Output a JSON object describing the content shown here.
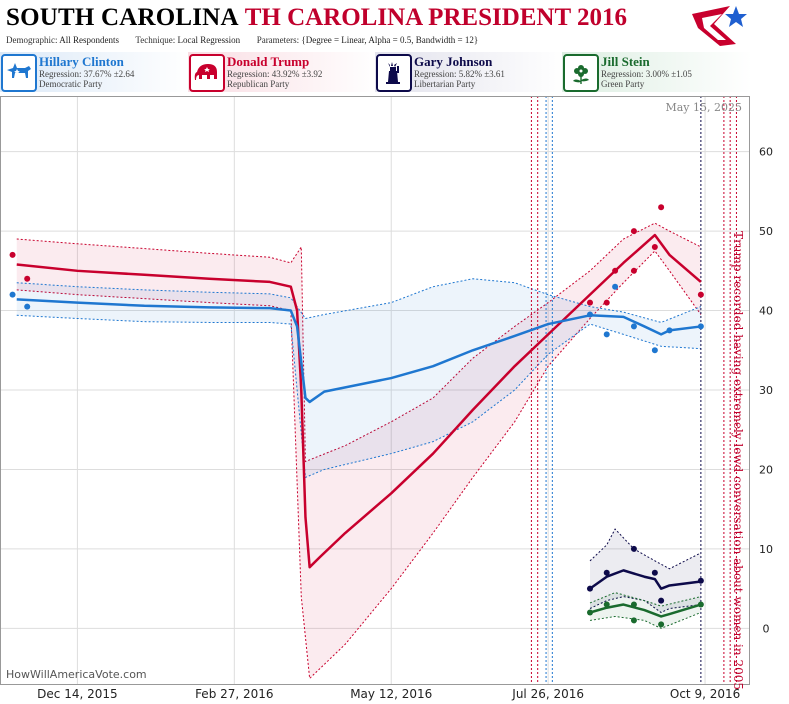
{
  "header": {
    "title_main": "SOUTH CAROLINA",
    "title_sub": "TH CAROLINA PRESIDENT 2016",
    "demographic_label": "Demographic:",
    "demographic_value": "All Respondents",
    "technique_label": "Technique:",
    "technique_value": "Local Regression",
    "parameters_label": "Parameters:",
    "parameters_value": "{Degree = Linear, Alpha = 0.5, Bandwidth = 12}"
  },
  "candidates": [
    {
      "name": "Hillary Clinton",
      "regression": "Regression: 37.67% ±2.64",
      "party": "Democratic Party",
      "color": "#1f77d0",
      "icon": "donkey-icon",
      "bg": "#e3eef9"
    },
    {
      "name": "Donald Trump",
      "regression": "Regression: 43.92% ±3.92",
      "party": "Republican Party",
      "color": "#c8002d",
      "icon": "elephant-icon",
      "bg": "#fbe6ea"
    },
    {
      "name": "Gary Johnson",
      "regression": "Regression: 5.82% ±3.61",
      "party": "Libertarian Party",
      "color": "#0d0a4a",
      "icon": "statue-of-liberty-icon",
      "bg": "#e7e7ef"
    },
    {
      "name": "Jill Stein",
      "regression": "Regression: 3.00% ±1.05",
      "party": "Green Party",
      "color": "#1a6b2e",
      "icon": "flower-icon",
      "bg": "#e4f0e7"
    }
  ],
  "watermark": "HowWillAmericaVote.com",
  "current_date": "May 15, 2025",
  "chart_data": {
    "type": "line",
    "x_axis": {
      "type": "date",
      "ticks": [
        "Dec 14, 2015",
        "Feb 27, 2016",
        "May 12, 2016",
        "Jul 26, 2016",
        "Oct 9, 2016"
      ],
      "range": [
        "2015-11-07",
        "2016-10-30"
      ]
    },
    "y_axis": {
      "ticks": [
        "0",
        "10",
        "20",
        "30",
        "40",
        "50",
        "60"
      ],
      "range": [
        -7,
        67
      ],
      "position": "right"
    },
    "grid": true,
    "vertical_markers": [
      {
        "date": "2016-07-18",
        "color": "#c8002d",
        "style": "dotted"
      },
      {
        "date": "2016-07-21",
        "color": "#c8002d",
        "style": "dotted"
      },
      {
        "date": "2016-07-25",
        "color": "#1f77d0",
        "style": "dotted"
      },
      {
        "date": "2016-07-28",
        "color": "#1f77d0",
        "style": "dotted"
      },
      {
        "date": "2016-10-07",
        "color": "#0d0a4a",
        "style": "dotted"
      },
      {
        "date": "2016-10-18",
        "color": "#c8002d",
        "style": "dotted"
      },
      {
        "date": "2016-10-21",
        "color": "#c8002d",
        "style": "dotted"
      },
      {
        "date": "2016-10-24",
        "color": "#c8002d",
        "style": "dotted"
      }
    ],
    "annotation": {
      "text": "Trump recorded having extremely lewd conversation about women in 2005",
      "date": "2016-10-21",
      "rotation": 90
    },
    "series": [
      {
        "name": "Donald Trump",
        "color": "#c8002d",
        "trend": [
          [
            "2015-11-15",
            45.8
          ],
          [
            "2015-12-14",
            45
          ],
          [
            "2016-01-15",
            44.5
          ],
          [
            "2016-02-15",
            44
          ],
          [
            "2016-03-15",
            43.6
          ],
          [
            "2016-03-25",
            43
          ],
          [
            "2016-03-28",
            40
          ],
          [
            "2016-03-30",
            30
          ],
          [
            "2016-04-01",
            14
          ],
          [
            "2016-04-03",
            7.7
          ],
          [
            "2016-04-08",
            9
          ],
          [
            "2016-04-20",
            12
          ],
          [
            "2016-05-12",
            17
          ],
          [
            "2016-06-01",
            22
          ],
          [
            "2016-06-20",
            27.5
          ],
          [
            "2016-07-10",
            33
          ],
          [
            "2016-07-26",
            37
          ],
          [
            "2016-08-15",
            42
          ],
          [
            "2016-08-31",
            46
          ],
          [
            "2016-09-15",
            49.5
          ],
          [
            "2016-09-22",
            47
          ],
          [
            "2016-10-07",
            43.6
          ]
        ],
        "upper": [
          [
            "2015-11-15",
            49
          ],
          [
            "2015-12-14",
            48.4
          ],
          [
            "2016-01-15",
            47.8
          ],
          [
            "2016-02-15",
            47.2
          ],
          [
            "2016-03-15",
            46.7
          ],
          [
            "2016-03-25",
            46
          ],
          [
            "2016-03-30",
            48
          ],
          [
            "2016-04-01",
            21
          ],
          [
            "2016-04-20",
            23
          ],
          [
            "2016-05-12",
            26
          ],
          [
            "2016-06-01",
            29
          ],
          [
            "2016-06-20",
            34
          ],
          [
            "2016-07-10",
            38
          ],
          [
            "2016-07-26",
            41
          ],
          [
            "2016-08-15",
            45
          ],
          [
            "2016-08-31",
            49
          ],
          [
            "2016-09-15",
            51
          ],
          [
            "2016-09-22",
            50
          ],
          [
            "2016-10-07",
            48
          ]
        ],
        "lower": [
          [
            "2015-11-15",
            42.6
          ],
          [
            "2015-12-14",
            42
          ],
          [
            "2016-01-15",
            41.5
          ],
          [
            "2016-02-15",
            41
          ],
          [
            "2016-03-15",
            40.6
          ],
          [
            "2016-03-25",
            40
          ],
          [
            "2016-03-30",
            4
          ],
          [
            "2016-04-03",
            -6.3
          ],
          [
            "2016-04-20",
            -2
          ],
          [
            "2016-05-12",
            5
          ],
          [
            "2016-06-01",
            12
          ],
          [
            "2016-06-20",
            19
          ],
          [
            "2016-07-10",
            26
          ],
          [
            "2016-07-26",
            33
          ],
          [
            "2016-08-15",
            39
          ],
          [
            "2016-08-31",
            43.5
          ],
          [
            "2016-09-15",
            47.5
          ],
          [
            "2016-09-22",
            45
          ],
          [
            "2016-10-07",
            39.5
          ]
        ],
        "points": [
          [
            "2015-11-13",
            47
          ],
          [
            "2015-11-20",
            44
          ],
          [
            "2016-08-15",
            41
          ],
          [
            "2016-08-23",
            41
          ],
          [
            "2016-08-27",
            45
          ],
          [
            "2016-09-05",
            45
          ],
          [
            "2016-09-05",
            50
          ],
          [
            "2016-09-15",
            48
          ],
          [
            "2016-09-18",
            53
          ],
          [
            "2016-10-07",
            42
          ]
        ]
      },
      {
        "name": "Hillary Clinton",
        "color": "#1f77d0",
        "trend": [
          [
            "2015-11-15",
            41.4
          ],
          [
            "2015-12-14",
            41
          ],
          [
            "2016-01-15",
            40.6
          ],
          [
            "2016-02-15",
            40.4
          ],
          [
            "2016-03-15",
            40.3
          ],
          [
            "2016-03-25",
            40
          ],
          [
            "2016-03-28",
            38
          ],
          [
            "2016-04-01",
            29
          ],
          [
            "2016-04-03",
            28.5
          ],
          [
            "2016-04-10",
            29.8
          ],
          [
            "2016-05-12",
            31.5
          ],
          [
            "2016-06-01",
            33
          ],
          [
            "2016-06-20",
            35
          ],
          [
            "2016-07-10",
            36.8
          ],
          [
            "2016-07-26",
            38.3
          ],
          [
            "2016-08-15",
            39.4
          ],
          [
            "2016-08-31",
            39.2
          ],
          [
            "2016-09-10",
            38
          ],
          [
            "2016-09-18",
            37
          ],
          [
            "2016-09-22",
            37.5
          ],
          [
            "2016-10-07",
            38
          ]
        ],
        "upper": [
          [
            "2015-11-15",
            43.5
          ],
          [
            "2015-12-14",
            43
          ],
          [
            "2016-01-15",
            42.6
          ],
          [
            "2016-02-15",
            42.3
          ],
          [
            "2016-03-15",
            42.1
          ],
          [
            "2016-03-25",
            41.6
          ],
          [
            "2016-04-01",
            39
          ],
          [
            "2016-04-10",
            39.5
          ],
          [
            "2016-05-12",
            41
          ],
          [
            "2016-06-01",
            43
          ],
          [
            "2016-06-20",
            44
          ],
          [
            "2016-07-10",
            43.5
          ],
          [
            "2016-07-26",
            42
          ],
          [
            "2016-08-15",
            40.5
          ],
          [
            "2016-08-31",
            39.8
          ],
          [
            "2016-09-18",
            38.5
          ],
          [
            "2016-10-07",
            40.5
          ]
        ],
        "lower": [
          [
            "2015-11-15",
            39.4
          ],
          [
            "2015-12-14",
            39
          ],
          [
            "2016-01-15",
            38.6
          ],
          [
            "2016-02-15",
            38.5
          ],
          [
            "2016-03-15",
            38.5
          ],
          [
            "2016-03-25",
            38.3
          ],
          [
            "2016-04-01",
            19
          ],
          [
            "2016-04-10",
            20
          ],
          [
            "2016-05-12",
            22
          ],
          [
            "2016-06-01",
            23.5
          ],
          [
            "2016-06-20",
            26
          ],
          [
            "2016-07-10",
            30
          ],
          [
            "2016-07-26",
            34.5
          ],
          [
            "2016-08-15",
            38.3
          ],
          [
            "2016-08-31",
            37
          ],
          [
            "2016-09-18",
            35.5
          ],
          [
            "2016-10-07",
            35.2
          ]
        ],
        "points": [
          [
            "2015-11-13",
            42
          ],
          [
            "2015-11-20",
            40.5
          ],
          [
            "2016-08-15",
            39.5
          ],
          [
            "2016-08-23",
            37
          ],
          [
            "2016-08-27",
            43
          ],
          [
            "2016-09-05",
            38
          ],
          [
            "2016-09-15",
            35
          ],
          [
            "2016-09-22",
            37.5
          ],
          [
            "2016-10-07",
            38
          ]
        ]
      },
      {
        "name": "Gary Johnson",
        "color": "#0d0a4a",
        "trend": [
          [
            "2016-08-15",
            5
          ],
          [
            "2016-08-23",
            6.5
          ],
          [
            "2016-08-31",
            7.3
          ],
          [
            "2016-09-10",
            6.5
          ],
          [
            "2016-09-15",
            6.2
          ],
          [
            "2016-09-18",
            5
          ],
          [
            "2016-09-22",
            5.4
          ],
          [
            "2016-10-07",
            5.9
          ]
        ],
        "upper": [
          [
            "2016-08-15",
            8.5
          ],
          [
            "2016-08-23",
            10.5
          ],
          [
            "2016-08-27",
            12.5
          ],
          [
            "2016-09-05",
            10
          ],
          [
            "2016-09-15",
            8.5
          ],
          [
            "2016-09-22",
            7.5
          ],
          [
            "2016-10-07",
            9.5
          ]
        ],
        "lower": [
          [
            "2016-08-15",
            2.5
          ],
          [
            "2016-08-23",
            3.5
          ],
          [
            "2016-08-31",
            4
          ],
          [
            "2016-09-10",
            3.5
          ],
          [
            "2016-09-18",
            2
          ],
          [
            "2016-09-22",
            2.5
          ],
          [
            "2016-10-07",
            3
          ]
        ],
        "points": [
          [
            "2016-08-15",
            5
          ],
          [
            "2016-08-23",
            7
          ],
          [
            "2016-09-05",
            10
          ],
          [
            "2016-09-15",
            7
          ],
          [
            "2016-09-18",
            3.5
          ],
          [
            "2016-10-07",
            6
          ]
        ]
      },
      {
        "name": "Jill Stein",
        "color": "#1a6b2e",
        "trend": [
          [
            "2016-08-15",
            2
          ],
          [
            "2016-08-23",
            2.6
          ],
          [
            "2016-08-31",
            3
          ],
          [
            "2016-09-10",
            2.3
          ],
          [
            "2016-09-18",
            1.5
          ],
          [
            "2016-09-22",
            1.8
          ],
          [
            "2016-10-07",
            3
          ]
        ],
        "upper": [
          [
            "2016-08-15",
            3.2
          ],
          [
            "2016-08-27",
            4.5
          ],
          [
            "2016-09-10",
            3.5
          ],
          [
            "2016-09-18",
            2.8
          ],
          [
            "2016-10-07",
            4
          ]
        ],
        "lower": [
          [
            "2016-08-15",
            1
          ],
          [
            "2016-08-27",
            1.5
          ],
          [
            "2016-09-10",
            1
          ],
          [
            "2016-09-18",
            0
          ],
          [
            "2016-10-07",
            2
          ]
        ],
        "points": [
          [
            "2016-08-15",
            2
          ],
          [
            "2016-08-23",
            3
          ],
          [
            "2016-09-05",
            3
          ],
          [
            "2016-09-05",
            1
          ],
          [
            "2016-09-18",
            0.5
          ],
          [
            "2016-10-07",
            3
          ]
        ]
      }
    ]
  }
}
